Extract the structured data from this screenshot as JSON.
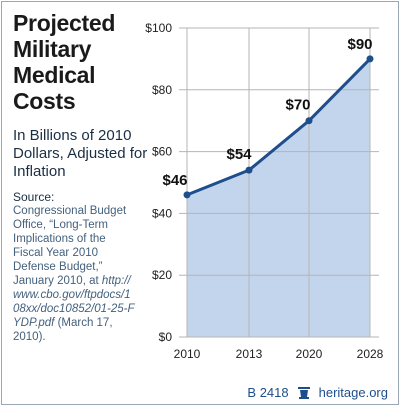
{
  "title_lines": [
    "Projected",
    "Military",
    "Medical",
    "Costs"
  ],
  "subtitle": "In Billions of 2010 Dollars, Adjusted for Inflation",
  "source": {
    "heading": "Source:",
    "text": "Congressional Budget Office, “Long-Term Implications of the Fiscal Year 2010 Defense Budget,” January 2010, at",
    "link": "http://www.cbo.gov/ftpdocs/108xx/doc10852/01-25-FYDP.pdf",
    "date": "(March 17, 2010)."
  },
  "footer": {
    "code": "B 2418",
    "site": "heritage.org",
    "icon": "bell-icon"
  },
  "colors": {
    "line": "#1f4e8c",
    "area": "#c3d5ec",
    "grid": "#b5b5b5"
  },
  "chart_data": {
    "type": "area",
    "title": "Projected Military Medical Costs",
    "subtitle": "In Billions of 2010 Dollars, Adjusted for Inflation",
    "x": [
      2010,
      2013,
      2020,
      2028
    ],
    "values": [
      46,
      54,
      70,
      90
    ],
    "data_labels": [
      "$46",
      "$54",
      "$70",
      "$90"
    ],
    "ylim": [
      0,
      100
    ],
    "yticks": [
      0,
      20,
      40,
      60,
      80,
      100
    ],
    "ytick_labels": [
      "$0",
      "$20",
      "$40",
      "$60",
      "$80",
      "$100"
    ],
    "xtick_labels": [
      "2010",
      "2013",
      "2020",
      "2028"
    ],
    "grid": true
  }
}
